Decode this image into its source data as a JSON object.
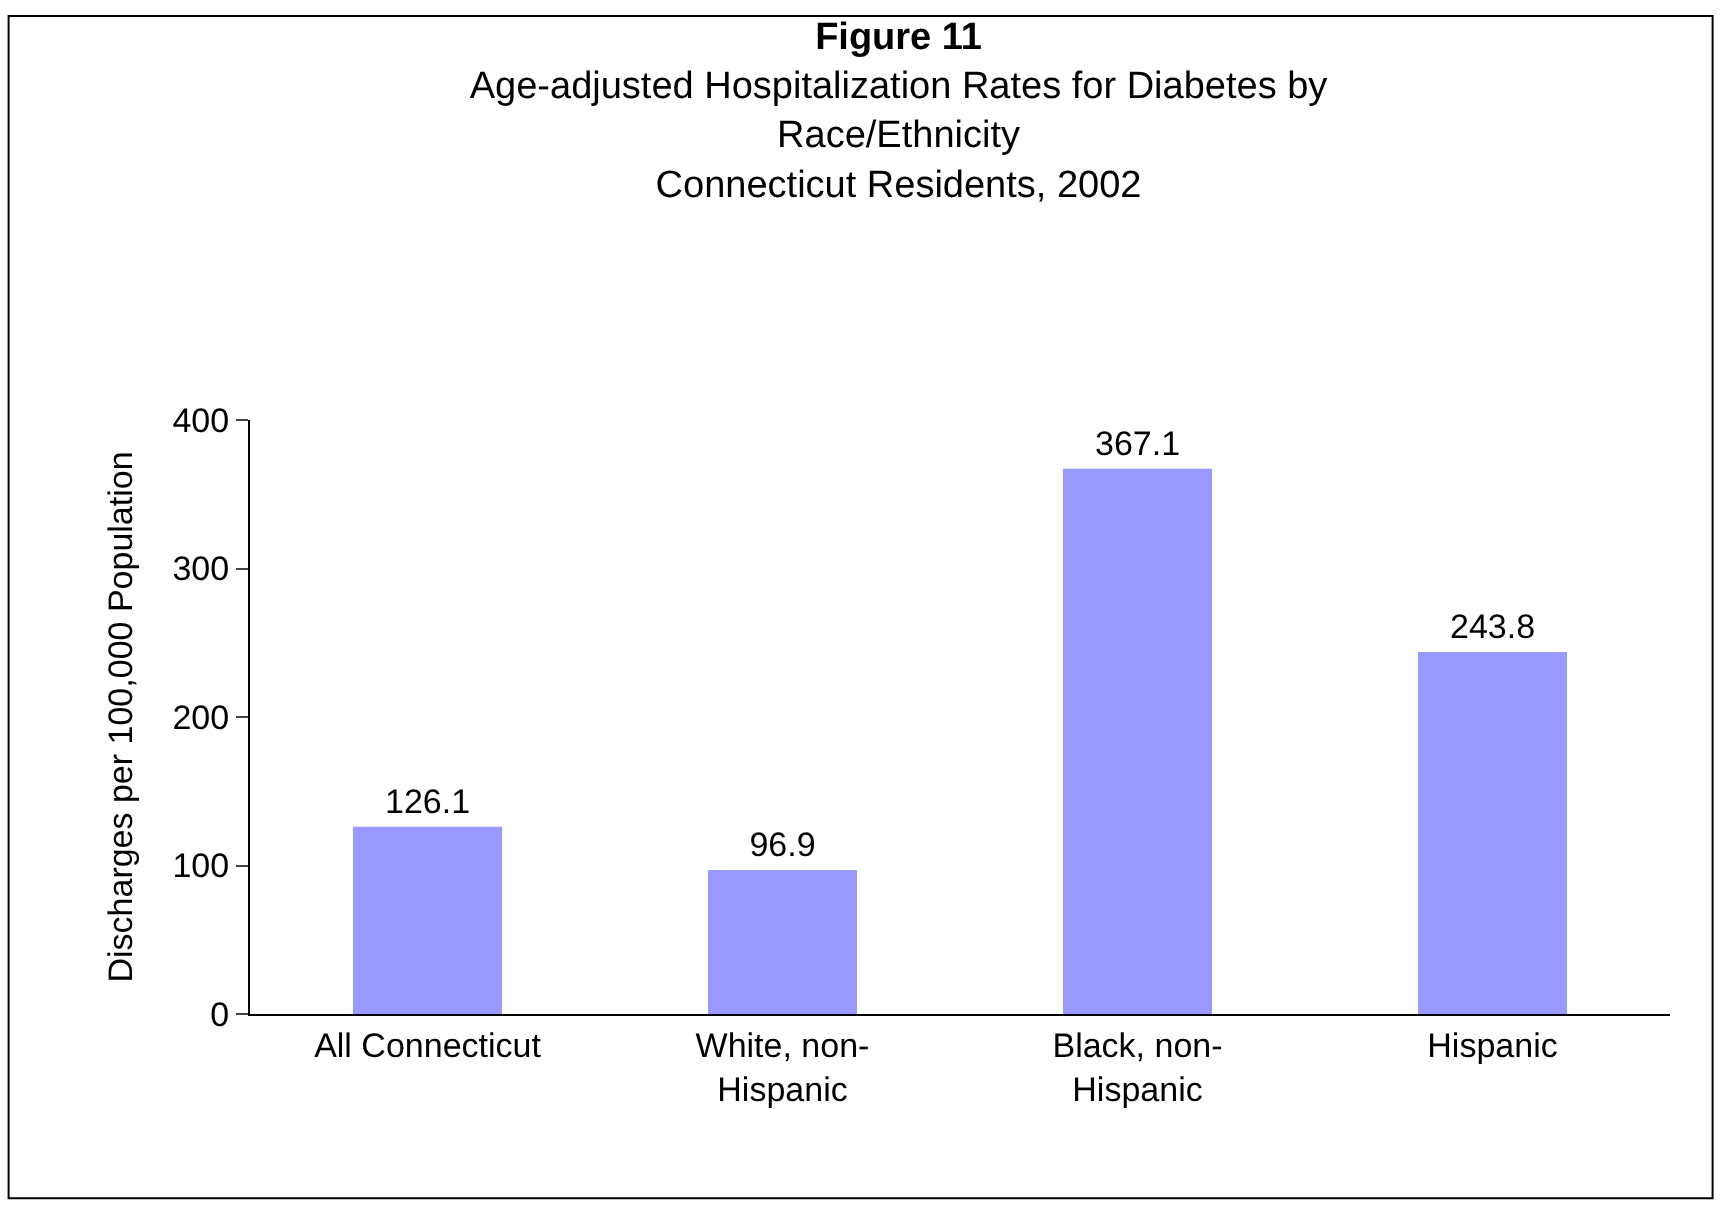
{
  "chart_data": {
    "type": "bar",
    "title": "Figure 11",
    "subtitle": "Age-adjusted Hospitalization Rates for Diabetes by\nRace/Ethnicity\nConnecticut Residents, 2002",
    "ylabel": "Discharges per 100,000 Population",
    "categories": [
      "All Connecticut",
      "White, non-Hispanic",
      "Black, non-Hispanic",
      "Hispanic"
    ],
    "values": [
      126.1,
      96.9,
      367.1,
      243.8
    ],
    "color": "#9999ff",
    "ylim": [
      0,
      400
    ],
    "yticks": [
      0,
      100,
      200,
      300,
      400
    ],
    "data_labels": true
  }
}
